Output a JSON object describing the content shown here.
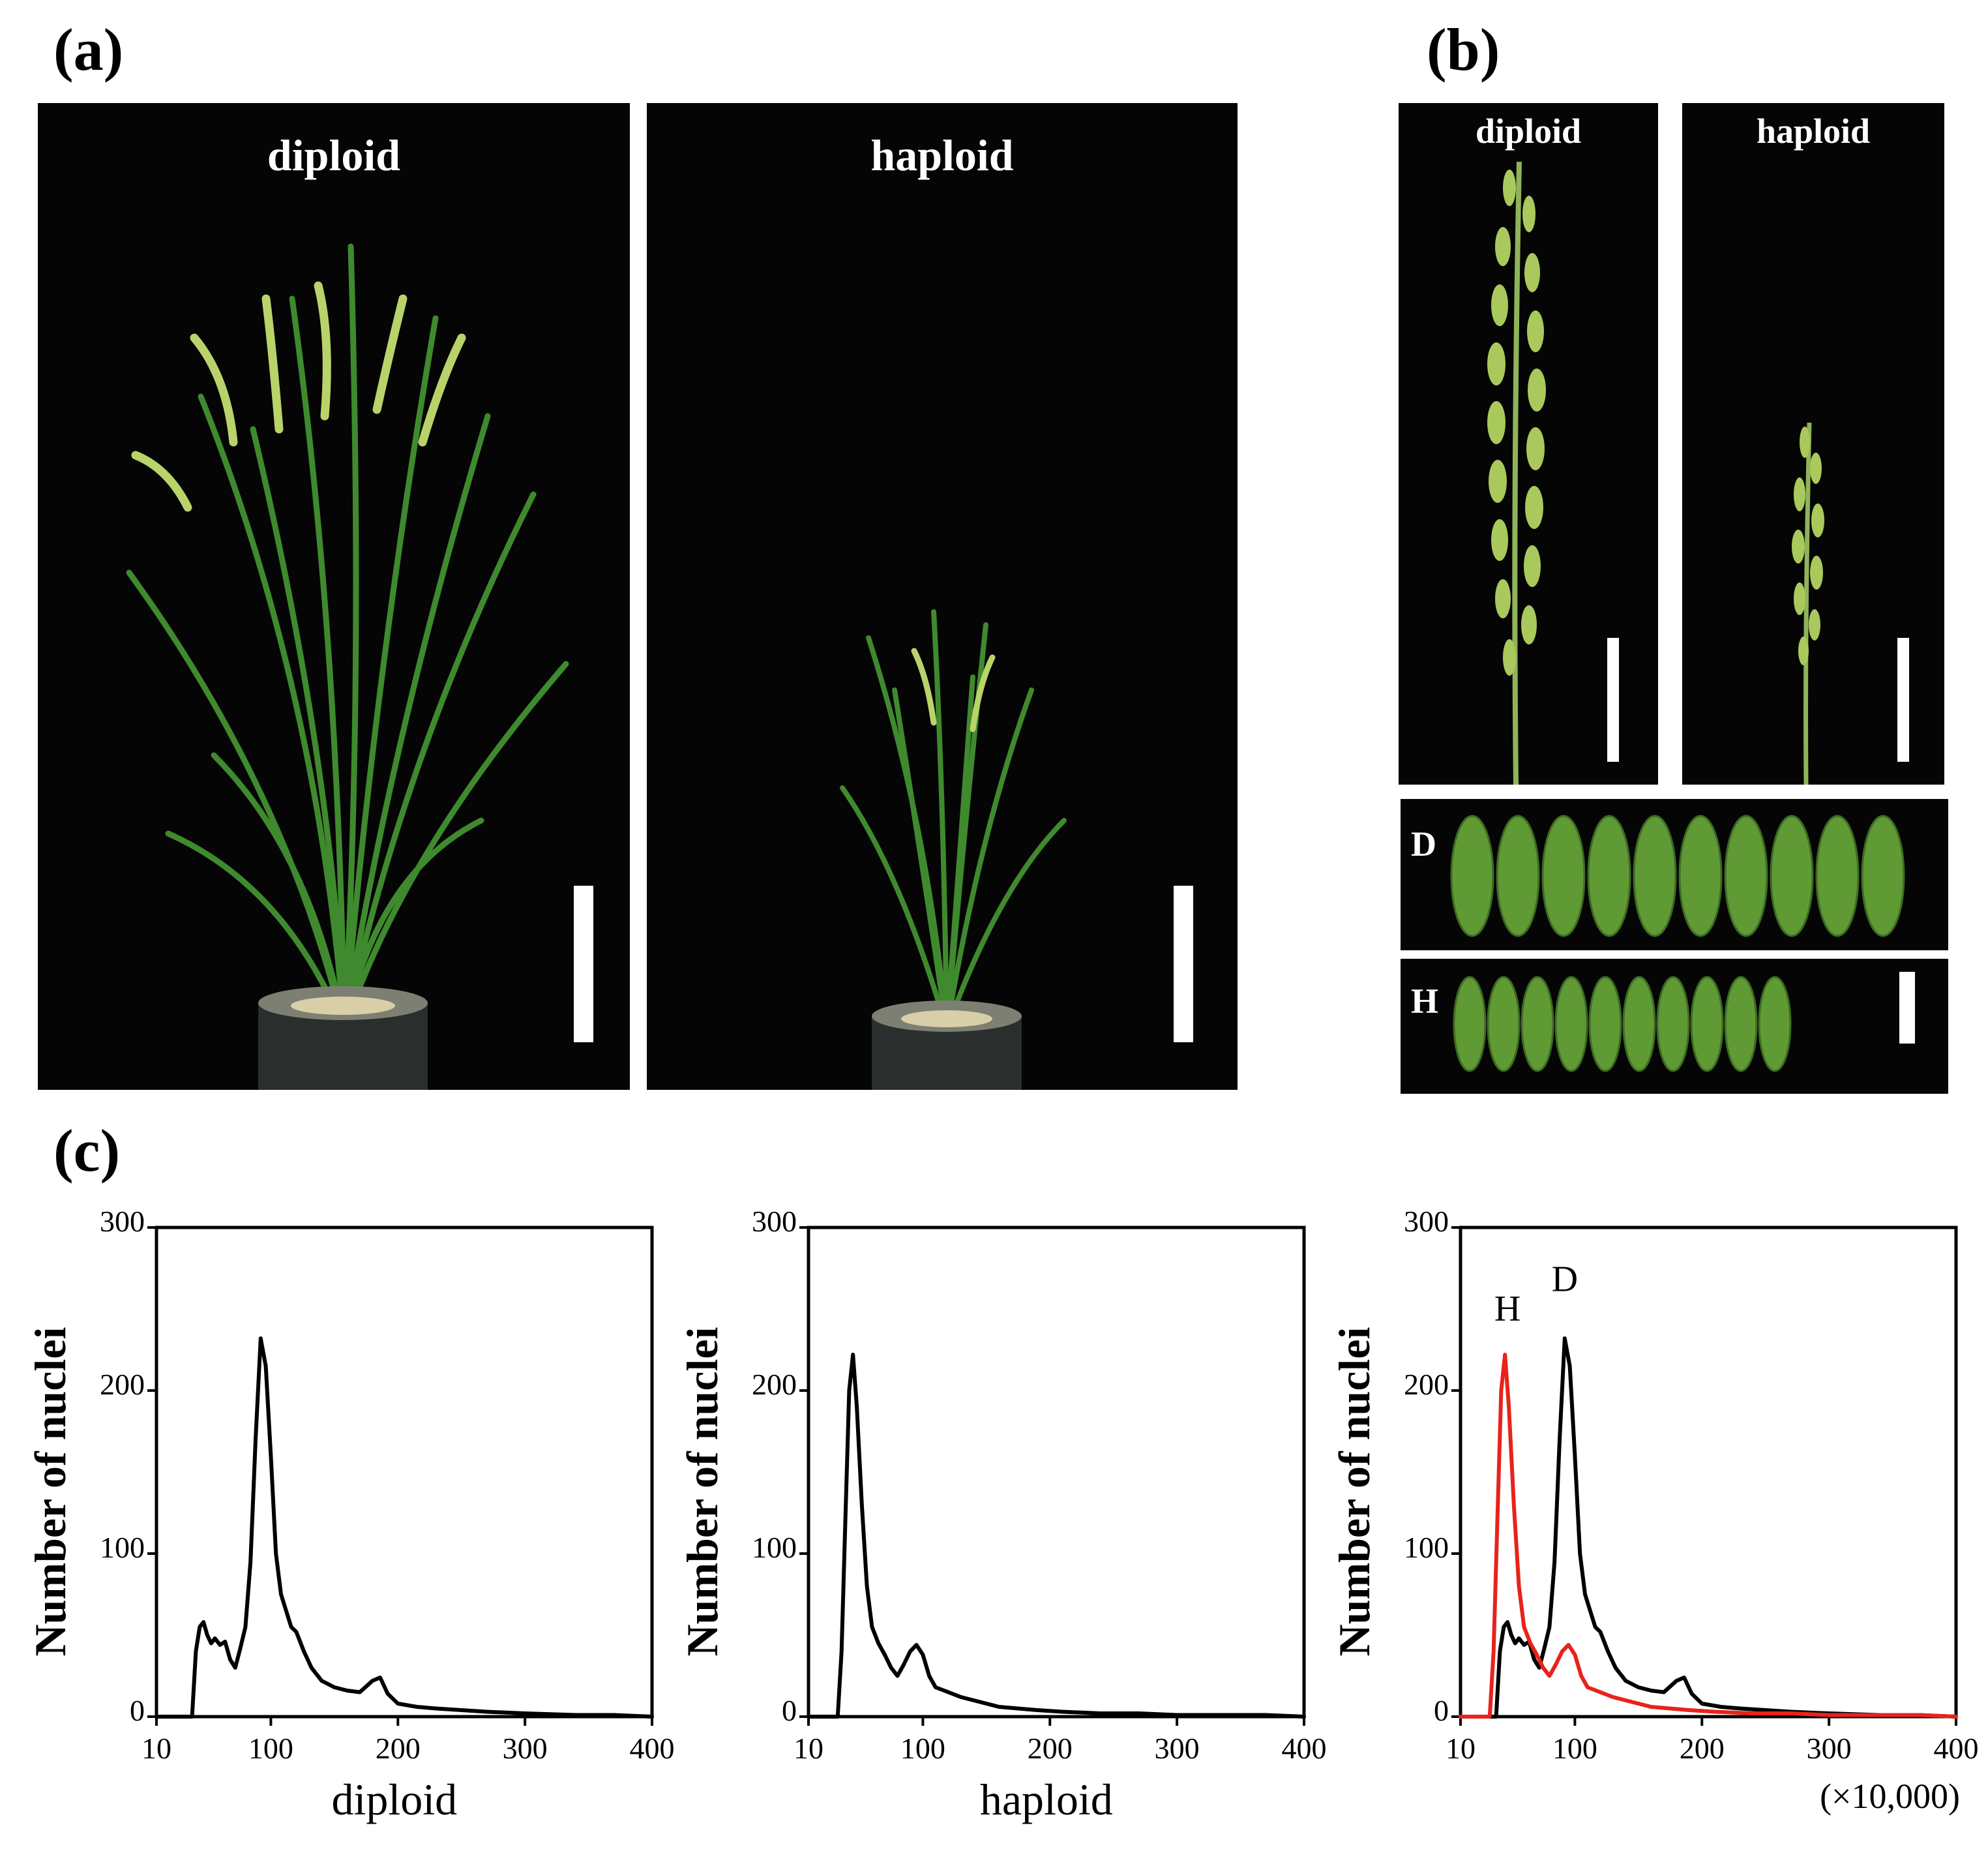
{
  "figure": {
    "panel_a": {
      "letter": "(a)",
      "photos": [
        {
          "label": "diploid"
        },
        {
          "label": "haploid"
        }
      ]
    },
    "panel_b": {
      "letter": "(b)",
      "photos": [
        {
          "label": "diploid"
        },
        {
          "label": "haploid"
        }
      ],
      "seed_rows": [
        {
          "tag": "D",
          "count": 10
        },
        {
          "tag": "H",
          "count": 10
        }
      ]
    },
    "panel_c": {
      "letter": "(c)"
    }
  },
  "colors": {
    "black_curve": "#000000",
    "red_curve": "#e8231c",
    "photo_bg": "#050505",
    "leaf": "#3f8a2e",
    "panicle": "#b9d36a",
    "seed": "#5f9a34"
  },
  "chart_data": [
    {
      "type": "line",
      "title": "",
      "xlabel": "diploid",
      "ylabel": "Number of nuclei",
      "xlim": [
        10,
        400
      ],
      "ylim": [
        0,
        300
      ],
      "xticks": [
        "10",
        "100",
        "200",
        "300",
        "400"
      ],
      "yticks": [
        "0",
        "100",
        "200",
        "300"
      ],
      "x_unit_note": "",
      "series": [
        {
          "name": "diploid",
          "color": "#000000",
          "x": [
            10,
            38,
            41,
            44,
            47,
            50,
            53,
            56,
            60,
            64,
            68,
            72,
            76,
            80,
            84,
            88,
            92,
            96,
            100,
            104,
            108,
            112,
            116,
            120,
            126,
            132,
            140,
            150,
            160,
            170,
            180,
            186,
            192,
            200,
            215,
            230,
            250,
            270,
            300,
            340,
            370,
            400
          ],
          "y": [
            0,
            0,
            40,
            55,
            58,
            50,
            45,
            48,
            44,
            46,
            35,
            30,
            42,
            55,
            95,
            170,
            232,
            215,
            160,
            100,
            75,
            65,
            55,
            52,
            40,
            30,
            22,
            18,
            16,
            15,
            22,
            24,
            14,
            8,
            6,
            5,
            4,
            3,
            2,
            1,
            1,
            0
          ]
        }
      ],
      "annotations": []
    },
    {
      "type": "line",
      "title": "",
      "xlabel": "haploid",
      "ylabel": "Number of nuclei",
      "xlim": [
        10,
        400
      ],
      "ylim": [
        0,
        300
      ],
      "xticks": [
        "10",
        "100",
        "200",
        "300",
        "400"
      ],
      "yticks": [
        "0",
        "100",
        "200",
        "300"
      ],
      "x_unit_note": "",
      "series": [
        {
          "name": "haploid",
          "color": "#000000",
          "x": [
            10,
            33,
            36,
            39,
            42,
            45,
            48,
            52,
            56,
            60,
            65,
            70,
            75,
            80,
            85,
            90,
            95,
            100,
            105,
            110,
            120,
            130,
            140,
            150,
            160,
            175,
            190,
            210,
            240,
            270,
            300,
            340,
            370,
            400
          ],
          "y": [
            0,
            0,
            40,
            120,
            200,
            222,
            190,
            130,
            80,
            55,
            45,
            38,
            30,
            25,
            32,
            40,
            44,
            38,
            25,
            18,
            15,
            12,
            10,
            8,
            6,
            5,
            4,
            3,
            2,
            2,
            1,
            1,
            1,
            0
          ]
        }
      ],
      "annotations": []
    },
    {
      "type": "line",
      "title": "",
      "xlabel": "",
      "ylabel": "Number of nuclei",
      "xlim": [
        10,
        400
      ],
      "ylim": [
        0,
        300
      ],
      "xticks": [
        "10",
        "100",
        "200",
        "300",
        "400"
      ],
      "yticks": [
        "0",
        "100",
        "200",
        "300"
      ],
      "x_unit_note": "(×10,000)",
      "series": [
        {
          "name": "D",
          "color": "#000000",
          "x": [
            10,
            38,
            41,
            44,
            47,
            50,
            53,
            56,
            60,
            64,
            68,
            72,
            76,
            80,
            84,
            88,
            92,
            96,
            100,
            104,
            108,
            112,
            116,
            120,
            126,
            132,
            140,
            150,
            160,
            170,
            180,
            186,
            192,
            200,
            215,
            230,
            250,
            270,
            300,
            340,
            370,
            400
          ],
          "y": [
            0,
            0,
            40,
            55,
            58,
            50,
            45,
            48,
            44,
            46,
            35,
            30,
            42,
            55,
            95,
            170,
            232,
            215,
            160,
            100,
            75,
            65,
            55,
            52,
            40,
            30,
            22,
            18,
            16,
            15,
            22,
            24,
            14,
            8,
            6,
            5,
            4,
            3,
            2,
            1,
            1,
            0
          ]
        },
        {
          "name": "H",
          "color": "#e8231c",
          "x": [
            10,
            33,
            36,
            39,
            42,
            45,
            48,
            52,
            56,
            60,
            65,
            70,
            75,
            80,
            85,
            90,
            95,
            100,
            105,
            110,
            120,
            130,
            140,
            150,
            160,
            175,
            190,
            210,
            240,
            270,
            300,
            340,
            370,
            400
          ],
          "y": [
            0,
            0,
            40,
            120,
            200,
            222,
            190,
            130,
            80,
            55,
            45,
            38,
            30,
            25,
            32,
            40,
            44,
            38,
            25,
            18,
            15,
            12,
            10,
            8,
            6,
            5,
            4,
            3,
            2,
            2,
            1,
            1,
            1,
            0
          ]
        }
      ],
      "annotations": [
        {
          "text": "H",
          "x": 47,
          "y": 243
        },
        {
          "text": "D",
          "x": 92,
          "y": 261
        }
      ]
    }
  ]
}
